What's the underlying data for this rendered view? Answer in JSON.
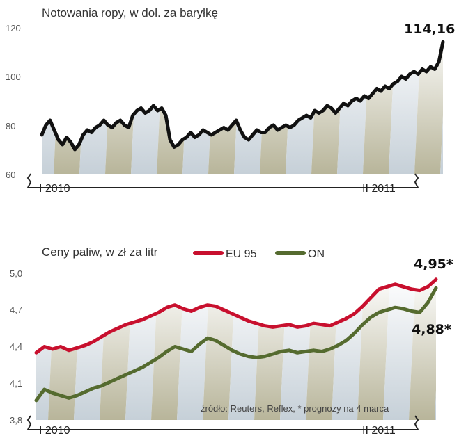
{
  "chart_data": [
    {
      "type": "line",
      "title": "Notowania ropy, w dol. za baryłkę",
      "y_ticks": [
        "60",
        "80",
        "100",
        "120"
      ],
      "ylim": [
        60,
        120
      ],
      "x_ticks": [
        "I 2010",
        "II 2011"
      ],
      "annotation": "114,16",
      "grid": false,
      "legend": "none",
      "series": [
        {
          "color": "#111111",
          "values": [
            76,
            80,
            82,
            78,
            74,
            72,
            75,
            73,
            70,
            72,
            76,
            78,
            77,
            79,
            80,
            82,
            80,
            79,
            81,
            82,
            80,
            79,
            84,
            86,
            87,
            85,
            86,
            88,
            86,
            87,
            84,
            74,
            71,
            72,
            74,
            75,
            77,
            75,
            76,
            78,
            77,
            76,
            77,
            78,
            79,
            78,
            80,
            82,
            78,
            75,
            74,
            76,
            78,
            77,
            77,
            79,
            80,
            78,
            79,
            80,
            79,
            80,
            82,
            83,
            84,
            83,
            86,
            85,
            86,
            88,
            87,
            85,
            87,
            89,
            88,
            90,
            91,
            90,
            92,
            91,
            93,
            95,
            94,
            96,
            95,
            97,
            98,
            100,
            99,
            101,
            102,
            101,
            103,
            102,
            104,
            103,
            106,
            114.16
          ]
        }
      ]
    },
    {
      "type": "line",
      "title": "Ceny paliw, w zł za litr",
      "y_ticks": [
        "3,8",
        "4,1",
        "4,4",
        "4,7",
        "5,0"
      ],
      "ylim": [
        3.8,
        5.0
      ],
      "x_ticks": [
        "I 2010",
        "II 2011"
      ],
      "grid": false,
      "legend": "top-center",
      "source_note": "źródło: Reuters, Reflex, * prognozy na 4 marca",
      "series": [
        {
          "name": "EU 95",
          "color": "#c8102e",
          "annotation": "4,95*",
          "values": [
            4.35,
            4.4,
            4.38,
            4.4,
            4.37,
            4.39,
            4.41,
            4.44,
            4.48,
            4.52,
            4.55,
            4.58,
            4.6,
            4.62,
            4.65,
            4.68,
            4.72,
            4.74,
            4.71,
            4.69,
            4.72,
            4.74,
            4.73,
            4.7,
            4.67,
            4.64,
            4.61,
            4.59,
            4.57,
            4.56,
            4.57,
            4.58,
            4.56,
            4.57,
            4.59,
            4.58,
            4.57,
            4.6,
            4.63,
            4.67,
            4.73,
            4.8,
            4.87,
            4.89,
            4.91,
            4.89,
            4.87,
            4.86,
            4.89,
            4.95
          ]
        },
        {
          "name": "ON",
          "color": "#556b2f",
          "annotation": "4,88*",
          "values": [
            3.96,
            4.05,
            4.02,
            4.0,
            3.98,
            4.0,
            4.03,
            4.06,
            4.08,
            4.11,
            4.14,
            4.17,
            4.2,
            4.23,
            4.27,
            4.31,
            4.36,
            4.4,
            4.38,
            4.36,
            4.42,
            4.47,
            4.45,
            4.41,
            4.37,
            4.34,
            4.32,
            4.31,
            4.32,
            4.34,
            4.36,
            4.37,
            4.35,
            4.36,
            4.37,
            4.36,
            4.38,
            4.41,
            4.45,
            4.51,
            4.58,
            4.64,
            4.68,
            4.7,
            4.72,
            4.71,
            4.69,
            4.68,
            4.76,
            4.88
          ]
        }
      ]
    }
  ]
}
